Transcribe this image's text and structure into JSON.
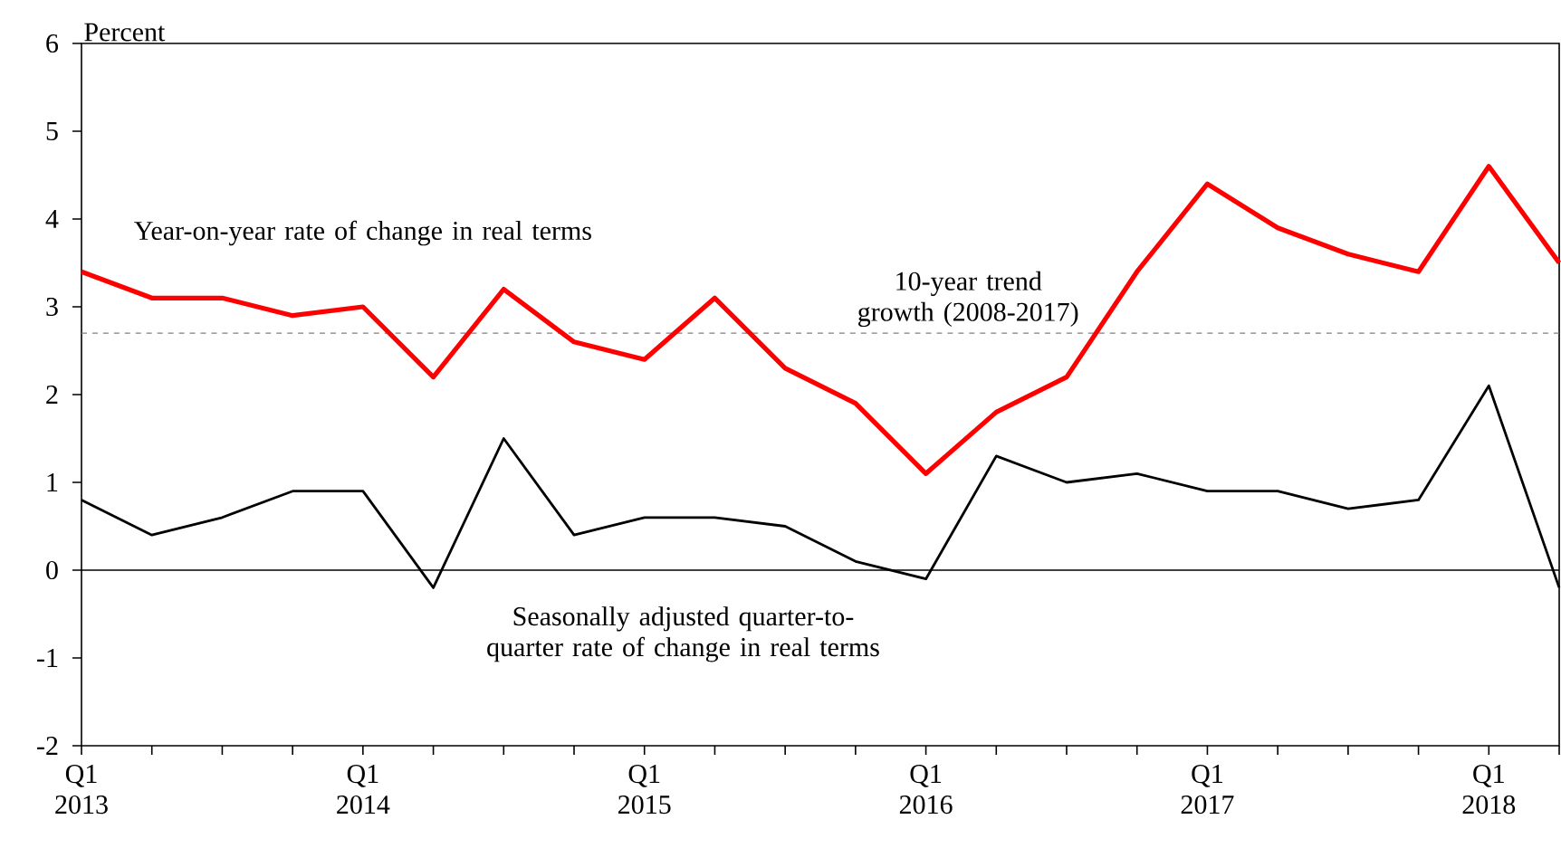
{
  "chart_data": {
    "type": "line",
    "ylabel": "Percent",
    "categories": [
      "Q1 2013",
      null,
      null,
      null,
      "Q1 2014",
      null,
      null,
      null,
      "Q1 2015",
      null,
      null,
      null,
      "Q1 2016",
      null,
      null,
      null,
      "Q1 2017",
      null,
      null,
      null,
      "Q1 2018",
      null
    ],
    "series": [
      {
        "color": "#ff0000",
        "values": [
          3.4,
          3.1,
          3.1,
          2.9,
          3.0,
          2.2,
          3.2,
          2.6,
          2.4,
          3.1,
          2.3,
          1.9,
          1.1,
          1.8,
          2.2,
          3.4,
          4.4,
          3.9,
          3.6,
          3.4,
          4.6,
          3.5
        ]
      },
      {
        "color": "#000000",
        "values": [
          0.8,
          0.4,
          0.6,
          0.9,
          0.9,
          -0.2,
          1.5,
          0.4,
          0.6,
          0.6,
          0.5,
          0.1,
          -0.1,
          1.3,
          1.0,
          1.1,
          0.9,
          0.9,
          0.7,
          0.8,
          2.1,
          -0.2
        ]
      }
    ],
    "ylim": [
      -2,
      6
    ],
    "yticks": [
      -2,
      -1,
      0,
      1,
      2,
      3,
      4,
      5,
      6
    ],
    "ref_lines": [
      {
        "axis": "y",
        "value": 2.7,
        "label": "10-year trend growth (2008-2017)",
        "color": "#808080",
        "line_style": "dashed"
      },
      {
        "axis": "y",
        "value": 0,
        "color": "#000000",
        "line_style": "solid"
      }
    ],
    "annotations": [
      "Year-on-year rate of change in real terms",
      "Seasonally adjusted quarter-to-quarter rate of change in real terms"
    ],
    "grid": false,
    "marker": "none",
    "line_style": "solid"
  }
}
